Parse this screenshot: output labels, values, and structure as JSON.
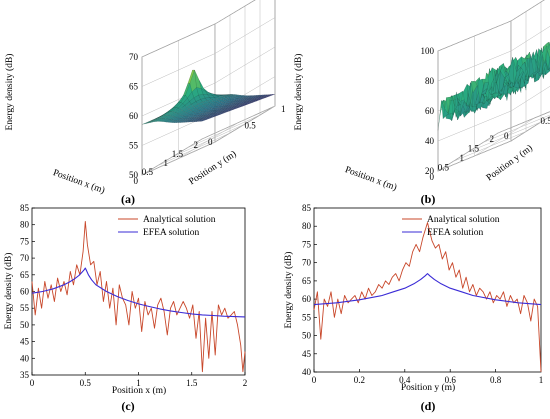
{
  "figure": {
    "panel_labels": [
      "(a)",
      "(b)",
      "(c)",
      "(d)"
    ]
  },
  "chart_data": [
    {
      "panel": "(a)",
      "type": "surface",
      "xlabel": "Position x (m)",
      "ylabel": "Position y (m)",
      "zlabel": "Energy density (dB)",
      "x_ticks": [
        "0",
        "0.5",
        "1",
        "1.5",
        "2"
      ],
      "y_ticks": [
        "0",
        "0.5",
        "1"
      ],
      "z_ticks": [
        "50",
        "55",
        "60",
        "65",
        "70"
      ],
      "xlim": [
        0,
        2
      ],
      "ylim": [
        0,
        1
      ],
      "zlim": [
        50,
        70
      ],
      "grid": true,
      "colormap": [
        "#3b0f70",
        "#2c728e",
        "#28ae80",
        "#d8e219",
        "#fde725"
      ],
      "peak_at": {
        "x": 0.5,
        "y": 0.5,
        "z": 67
      },
      "corner_values": {
        "x0_y0": 58.5,
        "x2_y0": 53,
        "x0_y1": 58,
        "x2_y1": 52
      }
    },
    {
      "panel": "(b)",
      "type": "surface",
      "xlabel": "Position x (m)",
      "ylabel": "Position y (m)",
      "zlabel": "Energy density (dB)",
      "x_ticks": [
        "0",
        "0.5",
        "1",
        "1.5",
        "2"
      ],
      "y_ticks": [
        "0",
        "0.5",
        "1"
      ],
      "z_ticks": [
        "20",
        "40",
        "60",
        "80",
        "100"
      ],
      "xlim": [
        0,
        2
      ],
      "ylim": [
        0,
        1
      ],
      "zlim": [
        20,
        100
      ],
      "grid": true,
      "colormap": [
        "#3b0f70",
        "#2c728e",
        "#28ae80",
        "#d8e219",
        "#fde725"
      ],
      "peak_at": {
        "x": 0.5,
        "y": 0.5,
        "z": 80
      },
      "mean_level": 57,
      "fluctuation": 10
    },
    {
      "panel": "(c)",
      "type": "line",
      "xlabel": "Position x (m)",
      "ylabel": "Energy density (dB)",
      "xlim": [
        0,
        2
      ],
      "ylim": [
        35,
        85
      ],
      "x_ticks": [
        "0",
        "0.5",
        "1",
        "1.5",
        "2"
      ],
      "y_ticks": [
        "35",
        "40",
        "45",
        "50",
        "55",
        "60",
        "65",
        "70",
        "75",
        "80",
        "85"
      ],
      "legend_position": "top-right",
      "series": [
        {
          "name": "Analytical solution",
          "color": "#c8472a",
          "x": [
            0,
            0.03,
            0.06,
            0.09,
            0.12,
            0.15,
            0.18,
            0.21,
            0.24,
            0.27,
            0.3,
            0.33,
            0.36,
            0.39,
            0.42,
            0.45,
            0.48,
            0.5,
            0.52,
            0.55,
            0.58,
            0.61,
            0.64,
            0.67,
            0.7,
            0.73,
            0.76,
            0.79,
            0.82,
            0.85,
            0.88,
            0.91,
            0.94,
            0.97,
            1.0,
            1.03,
            1.06,
            1.09,
            1.12,
            1.15,
            1.18,
            1.21,
            1.24,
            1.27,
            1.3,
            1.33,
            1.36,
            1.39,
            1.42,
            1.45,
            1.48,
            1.51,
            1.54,
            1.57,
            1.6,
            1.63,
            1.66,
            1.69,
            1.72,
            1.75,
            1.78,
            1.81,
            1.84,
            1.87,
            1.9,
            1.93,
            1.96,
            1.98,
            2.0
          ],
          "y": [
            63,
            53,
            61,
            55,
            63,
            58,
            62,
            57,
            64,
            60,
            63,
            59,
            66,
            62,
            68,
            65,
            72,
            81,
            74,
            68,
            69,
            62,
            66,
            57,
            63,
            55,
            61,
            50,
            62,
            58,
            56,
            50,
            60,
            55,
            58,
            48,
            57,
            53,
            55,
            49,
            56,
            58,
            54,
            47,
            55,
            57,
            53,
            55,
            57,
            55,
            52,
            56,
            46,
            54,
            36,
            52,
            40,
            54,
            41,
            56,
            53,
            55,
            52,
            53,
            54,
            50,
            44,
            36,
            42
          ]
        },
        {
          "name": "EFEA solution",
          "color": "#3a2bd6",
          "x": [
            0,
            0.1,
            0.2,
            0.3,
            0.35,
            0.4,
            0.44,
            0.47,
            0.49,
            0.5,
            0.51,
            0.53,
            0.56,
            0.6,
            0.7,
            0.8,
            0.9,
            1.0,
            1.1,
            1.2,
            1.3,
            1.4,
            1.5,
            1.6,
            1.7,
            1.8,
            1.9,
            2.0
          ],
          "y": [
            59.5,
            60,
            60.8,
            62,
            62.8,
            63.8,
            64.8,
            65.8,
            66.5,
            67,
            66.4,
            65,
            63.5,
            62,
            60,
            58.5,
            57.3,
            56.3,
            55.5,
            54.8,
            54.2,
            53.7,
            53.3,
            53,
            52.8,
            52.6,
            52.5,
            52.4
          ]
        }
      ]
    },
    {
      "panel": "(d)",
      "type": "line",
      "xlabel": "Position y (m)",
      "ylabel": "Energy density (dB)",
      "xlim": [
        0,
        1
      ],
      "ylim": [
        40,
        85
      ],
      "x_ticks": [
        "0",
        "0.2",
        "0.4",
        "0.6",
        "0.8",
        "1"
      ],
      "y_ticks": [
        "40",
        "45",
        "50",
        "55",
        "60",
        "65",
        "70",
        "75",
        "80",
        "85"
      ],
      "legend_position": "top-right",
      "series": [
        {
          "name": "Analytical solution",
          "color": "#c8472a",
          "x": [
            0,
            0.015,
            0.03,
            0.045,
            0.06,
            0.075,
            0.09,
            0.105,
            0.12,
            0.135,
            0.15,
            0.165,
            0.18,
            0.195,
            0.21,
            0.225,
            0.24,
            0.255,
            0.27,
            0.285,
            0.3,
            0.315,
            0.33,
            0.345,
            0.36,
            0.375,
            0.39,
            0.405,
            0.42,
            0.435,
            0.45,
            0.465,
            0.48,
            0.5,
            0.52,
            0.535,
            0.55,
            0.565,
            0.58,
            0.595,
            0.61,
            0.625,
            0.64,
            0.655,
            0.67,
            0.685,
            0.7,
            0.715,
            0.73,
            0.745,
            0.76,
            0.775,
            0.79,
            0.805,
            0.82,
            0.835,
            0.85,
            0.865,
            0.88,
            0.895,
            0.91,
            0.925,
            0.94,
            0.955,
            0.97,
            0.985,
            1.0
          ],
          "y": [
            57,
            62,
            49,
            60,
            58,
            62,
            55,
            60,
            56,
            61,
            59,
            60,
            61,
            59,
            62,
            60,
            63,
            61,
            62,
            64,
            63,
            65,
            64,
            66,
            67,
            65,
            68,
            70,
            69,
            73,
            75,
            73,
            77,
            81,
            76,
            74,
            75,
            71,
            73,
            68,
            70,
            66,
            68,
            63,
            66,
            62,
            64,
            61,
            63,
            62,
            60,
            62,
            59,
            61,
            60,
            62,
            58,
            61,
            59,
            60,
            56,
            61,
            59,
            54,
            60,
            58,
            40
          ]
        },
        {
          "name": "EFEA solution",
          "color": "#3a2bd6",
          "x": [
            0,
            0.1,
            0.2,
            0.3,
            0.35,
            0.4,
            0.44,
            0.47,
            0.49,
            0.5,
            0.51,
            0.53,
            0.56,
            0.6,
            0.65,
            0.7,
            0.8,
            0.9,
            1.0
          ],
          "y": [
            58.5,
            59,
            59.8,
            61,
            62,
            63,
            64.2,
            65.4,
            66.4,
            67,
            66.4,
            65.4,
            64.2,
            63,
            62,
            61,
            59.8,
            59,
            58.5
          ]
        }
      ]
    }
  ]
}
